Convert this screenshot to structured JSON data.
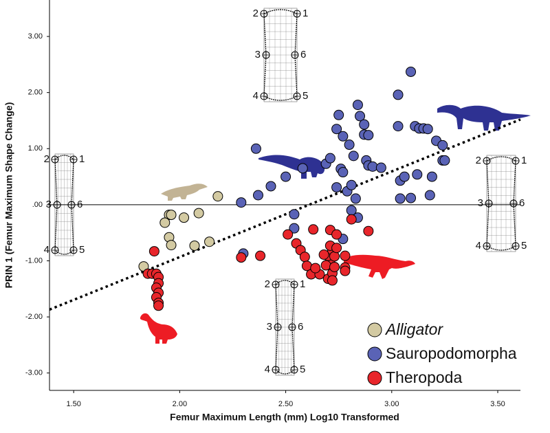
{
  "chart_data": {
    "type": "scatter",
    "x_label": "Femur Maximum Length (mm) Log10 Transformed",
    "y_label": "PRIN 1 (Femur Maximum Shape Change)",
    "xlim": [
      1.386,
      3.607
    ],
    "ylim": [
      -3.31,
      3.65
    ],
    "xticks": [
      {
        "value": 1.5,
        "label": "1.50"
      },
      {
        "value": 2,
        "label": "2.00"
      },
      {
        "value": 2.5,
        "label": "2.50"
      },
      {
        "value": 3,
        "label": "3.00"
      },
      {
        "value": 3.5,
        "label": "3.50"
      }
    ],
    "yticks": [
      {
        "value": 3,
        "label": "3.00"
      },
      {
        "value": 2,
        "label": "2.00"
      },
      {
        "value": 1,
        "label": "1.00"
      },
      {
        "value": 0,
        "label": ".00"
      },
      {
        "value": -1,
        "label": "-1.00"
      },
      {
        "value": -2,
        "label": "-2.00"
      },
      {
        "value": -3,
        "label": "-3.00"
      }
    ],
    "reference_line_y": 0,
    "trend_line": {
      "x": [
        1.386,
        3.607
      ],
      "y": [
        -1.87,
        1.52
      ]
    },
    "landmark_labels": [
      "1",
      "2",
      "3",
      "4",
      "5",
      "6"
    ],
    "series": [
      {
        "name": "Alligator",
        "color": "#d3caa2",
        "x": [
          2.18,
          1.95,
          1.96,
          1.93,
          2.02,
          2.09,
          1.95,
          1.96,
          2.07,
          2.14,
          1.83
        ],
        "values": [
          0.15,
          -0.18,
          -0.18,
          -0.32,
          -0.23,
          -0.15,
          -0.58,
          -0.72,
          -0.73,
          -0.66,
          -1.1
        ]
      },
      {
        "name": "Sauropodomorpha",
        "color": "#5a63b6",
        "x": [
          2.36,
          2.29,
          2.37,
          2.43,
          2.5,
          2.58,
          2.69,
          2.71,
          2.76,
          2.77,
          2.79,
          2.81,
          2.83,
          2.84,
          2.54,
          2.54,
          2.3,
          2.74,
          2.84,
          2.85,
          2.87,
          2.87,
          2.89,
          2.88,
          2.89,
          2.91,
          2.95,
          2.82,
          2.77,
          2.75,
          3.03,
          3.09,
          3.03,
          3.11,
          3.13,
          3.15,
          3.17,
          3.21,
          3.24,
          3.24,
          3.25,
          3.12,
          3.04,
          3.04,
          3.06,
          3.18,
          3.19,
          2.77,
          2.81,
          2.8,
          2.74,
          3.09
        ],
        "values": [
          1.0,
          0.04,
          0.17,
          0.33,
          0.5,
          0.65,
          0.73,
          0.83,
          0.64,
          0.58,
          0.24,
          0.35,
          0.11,
          -0.23,
          -0.42,
          -0.17,
          -0.87,
          1.35,
          1.78,
          1.58,
          1.43,
          1.25,
          1.24,
          0.79,
          0.7,
          0.68,
          0.66,
          0.87,
          1.22,
          1.6,
          1.96,
          2.37,
          1.4,
          1.4,
          1.36,
          1.36,
          1.35,
          1.14,
          1.06,
          0.79,
          0.79,
          0.54,
          0.43,
          0.11,
          0.5,
          0.17,
          0.5,
          -0.61,
          -0.1,
          1.07,
          0.31,
          0.12
        ]
      },
      {
        "name": "Theropoda",
        "color": "#e8262b",
        "x": [
          1.88,
          1.85,
          1.87,
          1.89,
          1.9,
          1.9,
          1.89,
          1.9,
          1.89,
          1.9,
          1.9,
          2.29,
          2.38,
          2.51,
          2.55,
          2.57,
          2.59,
          2.6,
          2.62,
          2.66,
          2.7,
          2.72,
          2.71,
          2.7,
          2.72,
          2.68,
          2.73,
          2.71,
          2.63,
          2.71,
          2.74,
          2.74,
          2.78,
          2.78,
          2.81,
          2.89,
          2.78,
          2.72,
          2.64,
          2.69,
          2.73
        ],
        "values": [
          -0.83,
          -1.23,
          -1.23,
          -1.23,
          -1.29,
          -1.4,
          -1.48,
          -1.57,
          -1.65,
          -1.75,
          -1.8,
          -0.94,
          -0.91,
          -0.53,
          -0.69,
          -0.81,
          -0.93,
          -1.09,
          -1.24,
          -1.24,
          -1.32,
          -1.22,
          -1.04,
          -0.91,
          -0.81,
          -0.89,
          -0.92,
          -0.73,
          -0.44,
          -0.45,
          -0.53,
          -0.77,
          -0.91,
          -1.12,
          -0.26,
          -0.47,
          -1.18,
          -1.35,
          -1.13,
          -1.08,
          -1.11
        ]
      }
    ]
  }
}
